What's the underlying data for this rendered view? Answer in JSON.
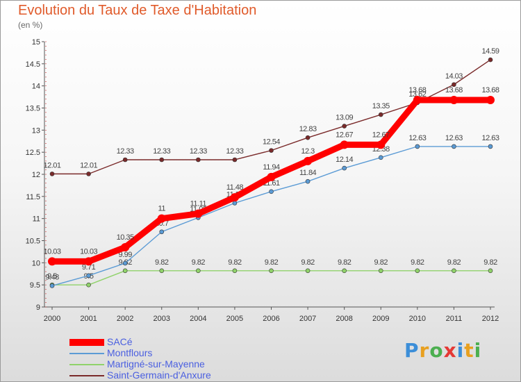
{
  "chart_data": {
    "type": "line",
    "title": "Evolution du Taux de Taxe d'Habitation",
    "subtitle": "(en %)",
    "categories": [
      "2000",
      "2001",
      "2002",
      "2003",
      "2004",
      "2005",
      "2006",
      "2007",
      "2008",
      "2009",
      "2010",
      "2011",
      "2012"
    ],
    "ylim": [
      9,
      15
    ],
    "yticks": [
      "9",
      "9.5",
      "10",
      "10.5",
      "11",
      "11.5",
      "12",
      "12.5",
      "13",
      "13.5",
      "14",
      "14.5",
      "15"
    ],
    "grid": false,
    "legend_position": "bottom-left",
    "series": [
      {
        "name": "SACé",
        "color": "#ff0000",
        "values": [
          10.03,
          10.03,
          10.35,
          11,
          11.11,
          11.48,
          11.94,
          12.3,
          12.67,
          12.67,
          13.68,
          13.68,
          13.68
        ],
        "labels": [
          "10.03",
          "10.03",
          "10.35",
          "11",
          "11.11",
          "11.48",
          "11.94",
          "12.3",
          "12.67",
          "12.67",
          "13.68",
          "13.68",
          "13.68"
        ]
      },
      {
        "name": "Montflours",
        "color": "#5b9bd5",
        "values": [
          9.48,
          9.71,
          9.99,
          10.7,
          11.02,
          11.35,
          11.61,
          11.84,
          12.14,
          12.38,
          12.63,
          12.63,
          12.63
        ],
        "labels": [
          "9.48",
          "9.71",
          "9.99",
          "10.7",
          "11.02",
          "11.35",
          "11.61",
          "11.84",
          "12.14",
          "12.38",
          "12.63",
          "12.63",
          "12.63"
        ]
      },
      {
        "name": "Martigné-sur-Mayenne",
        "color": "#90d26a",
        "values": [
          9.5,
          9.5,
          9.82,
          9.82,
          9.82,
          9.82,
          9.82,
          9.82,
          9.82,
          9.82,
          9.82,
          9.82,
          9.82
        ],
        "labels": [
          "9.5",
          "9.5",
          "9.82",
          "9.82",
          "9.82",
          "9.82",
          "9.82",
          "9.82",
          "9.82",
          "9.82",
          "9.82",
          "9.82",
          "9.82"
        ]
      },
      {
        "name": "Saint-Germain-d'Anxure",
        "color": "#7a2a2a",
        "values": [
          12.01,
          12.01,
          12.33,
          12.33,
          12.33,
          12.33,
          12.54,
          12.83,
          13.09,
          13.35,
          13.62,
          14.03,
          14.59
        ],
        "labels": [
          "12.01",
          "12.01",
          "12.33",
          "12.33",
          "12.33",
          "12.33",
          "12.54",
          "12.83",
          "13.09",
          "13.35",
          "13.62",
          "14.03",
          "14.59"
        ]
      }
    ]
  },
  "brand": [
    "P",
    "r",
    "o",
    "x",
    "i",
    "t",
    "i"
  ]
}
